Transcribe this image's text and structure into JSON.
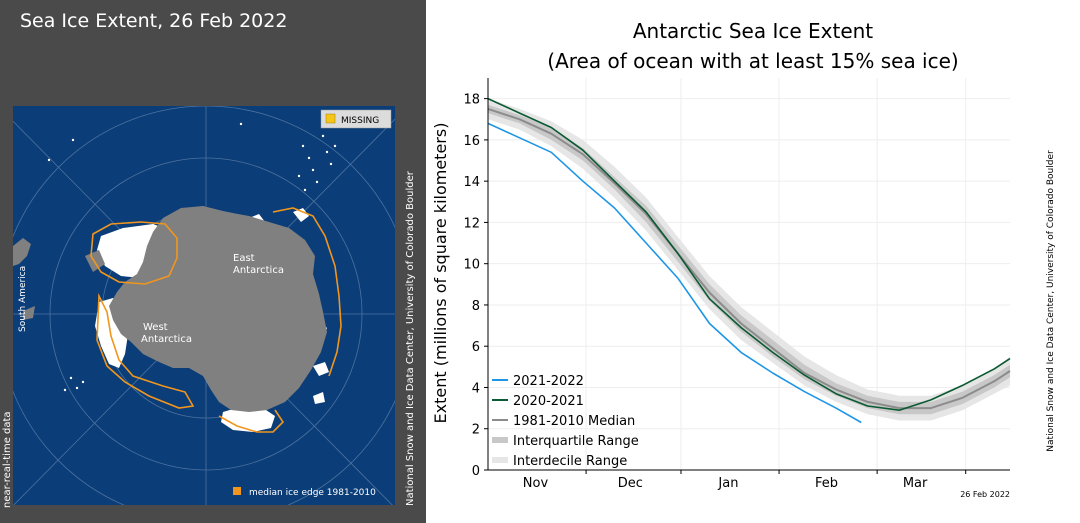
{
  "map": {
    "title": "Sea Ice Extent, 26 Feb 2022",
    "missing_label": "MISSING",
    "legend_label": "median ice edge 1981-2010",
    "label_south_america": "South America",
    "label_east_antarctica_1": "East",
    "label_east_antarctica_2": "Antarctica",
    "label_west_antarctica_1": "West",
    "label_west_antarctica_2": "Antarctica",
    "near_real_time": "near-real-time data",
    "credit": "National Snow and Ice Data Center, University of Colorado Boulder",
    "colors": {
      "ocean": "#0b3d78",
      "land": "#808080",
      "ice": "#ffffff",
      "median_edge": "#f0961e",
      "missing": "#f5c518"
    }
  },
  "chart_data": {
    "type": "line",
    "title": "Antarctic Sea Ice Extent",
    "subtitle": "(Area of ocean with at least 15% sea ice)",
    "ylabel": "Extent (millions of square kilometers)",
    "xlabel": "",
    "ylim": [
      0,
      19
    ],
    "y_ticks": [
      0,
      2,
      4,
      6,
      8,
      10,
      12,
      14,
      16,
      18
    ],
    "x_range_days": [
      0,
      165
    ],
    "month_ticks": [
      {
        "label": "Nov",
        "day": 15
      },
      {
        "label": "Dec",
        "day": 45
      },
      {
        "label": "Jan",
        "day": 76
      },
      {
        "label": "Feb",
        "day": 107
      },
      {
        "label": "Mar",
        "day": 135
      }
    ],
    "month_boundaries_day": [
      31,
      61,
      92,
      123,
      151
    ],
    "grid": true,
    "legend_position": "bottom-left",
    "date_label": "26 Feb 2022",
    "credit": "National Snow and Ice Data Center, University of Colorado Boulder",
    "x_days": [
      0,
      10,
      20,
      30,
      40,
      50,
      60,
      70,
      80,
      90,
      100,
      110,
      120,
      130,
      140,
      150,
      160,
      165
    ],
    "series": [
      {
        "name": "2021-2022",
        "color": "#1e96e6",
        "width": 1.6,
        "x": [
          0,
          10,
          20,
          30,
          40,
          50,
          60,
          70,
          80,
          90,
          100,
          110,
          118
        ],
        "values": [
          16.8,
          16.1,
          15.4,
          14.0,
          12.7,
          11.0,
          9.3,
          7.1,
          5.7,
          4.7,
          3.8,
          3.0,
          2.3
        ]
      },
      {
        "name": "2020-2021",
        "color": "#0a5a32",
        "width": 1.6,
        "x": [
          0,
          10,
          20,
          30,
          40,
          50,
          60,
          70,
          80,
          90,
          100,
          110,
          120,
          130,
          140,
          150,
          160,
          165
        ],
        "values": [
          18.0,
          17.3,
          16.6,
          15.5,
          14.0,
          12.5,
          10.5,
          8.3,
          6.9,
          5.7,
          4.6,
          3.7,
          3.1,
          2.9,
          3.4,
          4.1,
          4.9,
          5.4
        ]
      },
      {
        "name": "1981-2010 Median",
        "color": "#8c8c8c",
        "width": 2.0,
        "x": [
          0,
          10,
          20,
          30,
          40,
          50,
          60,
          70,
          80,
          90,
          100,
          110,
          120,
          130,
          140,
          150,
          160,
          165
        ],
        "values": [
          17.5,
          17.0,
          16.3,
          15.3,
          13.9,
          12.4,
          10.5,
          8.6,
          7.1,
          5.9,
          4.7,
          3.9,
          3.3,
          3.0,
          3.0,
          3.5,
          4.3,
          4.8
        ]
      }
    ],
    "bands": [
      {
        "name": "Interquartile Range",
        "color": "#c8c8c8",
        "x": [
          0,
          10,
          20,
          30,
          40,
          50,
          60,
          70,
          80,
          90,
          100,
          110,
          120,
          130,
          140,
          150,
          160,
          165
        ],
        "lower": [
          17.3,
          16.8,
          16.0,
          15.0,
          13.6,
          12.0,
          10.1,
          8.2,
          6.7,
          5.5,
          4.4,
          3.6,
          3.0,
          2.7,
          2.7,
          3.2,
          4.0,
          4.5
        ],
        "upper": [
          17.7,
          17.2,
          16.6,
          15.6,
          14.2,
          12.8,
          10.9,
          9.0,
          7.5,
          6.3,
          5.1,
          4.2,
          3.6,
          3.3,
          3.3,
          3.8,
          4.6,
          5.1
        ]
      },
      {
        "name": "Interdecile Range",
        "color": "#e6e6e6",
        "x": [
          0,
          10,
          20,
          30,
          40,
          50,
          60,
          70,
          80,
          90,
          100,
          110,
          120,
          130,
          140,
          150,
          160,
          165
        ],
        "lower": [
          17.0,
          16.5,
          15.7,
          14.6,
          13.2,
          11.6,
          9.7,
          7.8,
          6.3,
          5.2,
          4.1,
          3.3,
          2.7,
          2.4,
          2.4,
          2.9,
          3.7,
          4.1
        ],
        "upper": [
          18.0,
          17.5,
          16.9,
          16.0,
          14.7,
          13.2,
          11.3,
          9.4,
          7.9,
          6.7,
          5.5,
          4.6,
          3.9,
          3.6,
          3.6,
          4.1,
          4.9,
          5.5
        ]
      }
    ]
  }
}
